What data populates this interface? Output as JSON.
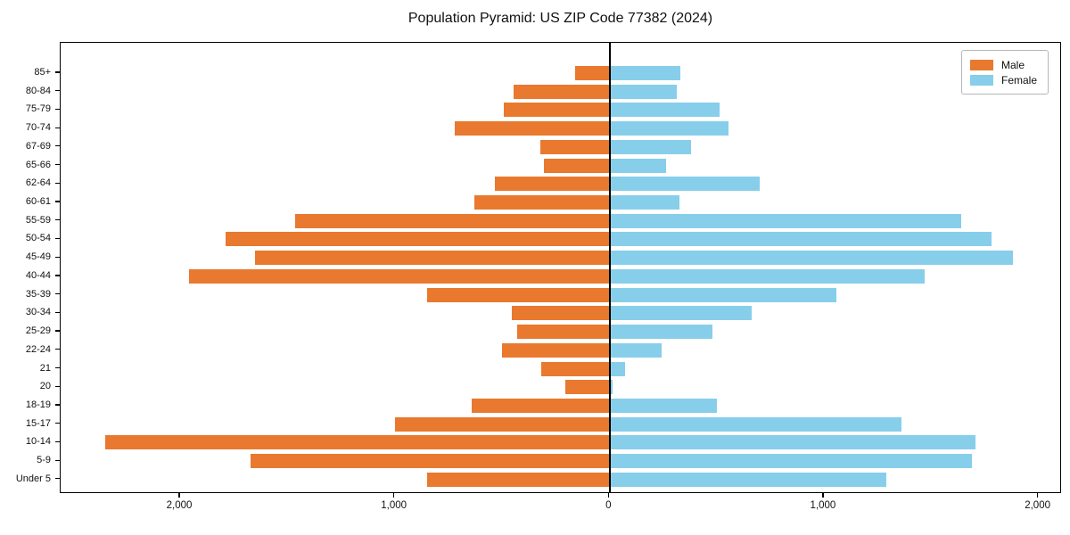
{
  "title": "Population Pyramid: US ZIP Code 77382 (2024)",
  "legend": {
    "male_label": "Male",
    "female_label": "Female"
  },
  "colors": {
    "male": "#e8792f",
    "female": "#87ceeb",
    "axis": "#000000",
    "legend_border": "#b7b7b7"
  },
  "chart_data": {
    "type": "bar",
    "subtype": "population-pyramid",
    "title": "Population Pyramid: US ZIP Code 77382 (2024)",
    "categories": [
      "85+",
      "80-84",
      "75-79",
      "70-74",
      "67-69",
      "65-66",
      "62-64",
      "60-61",
      "55-59",
      "50-54",
      "45-49",
      "40-44",
      "35-39",
      "30-34",
      "25-29",
      "22-24",
      "21",
      "20",
      "18-19",
      "15-17",
      "10-14",
      "5-9",
      "Under 5"
    ],
    "series": [
      {
        "name": "Male",
        "side": "left",
        "color": "#e8792f",
        "values": [
          160,
          445,
          490,
          720,
          320,
          305,
          535,
          630,
          1465,
          1790,
          1650,
          1960,
          850,
          455,
          430,
          500,
          315,
          205,
          640,
          1000,
          2350,
          1670,
          850
        ]
      },
      {
        "name": "Female",
        "side": "right",
        "color": "#87ceeb",
        "values": [
          330,
          315,
          515,
          555,
          380,
          265,
          700,
          325,
          1640,
          1780,
          1880,
          1470,
          1060,
          665,
          480,
          245,
          75,
          15,
          500,
          1360,
          1705,
          1690,
          1290
        ]
      }
    ],
    "x_ticks": [
      {
        "value": -2000,
        "label": "2,000"
      },
      {
        "value": -1000,
        "label": "1,000"
      },
      {
        "value": 0,
        "label": "0"
      },
      {
        "value": 1000,
        "label": "1,000"
      },
      {
        "value": 2000,
        "label": "2,000"
      }
    ],
    "xlim": [
      -2557,
      2110
    ],
    "grid": false,
    "legend_position": "upper right",
    "legend_entries": [
      "Male",
      "Female"
    ]
  }
}
